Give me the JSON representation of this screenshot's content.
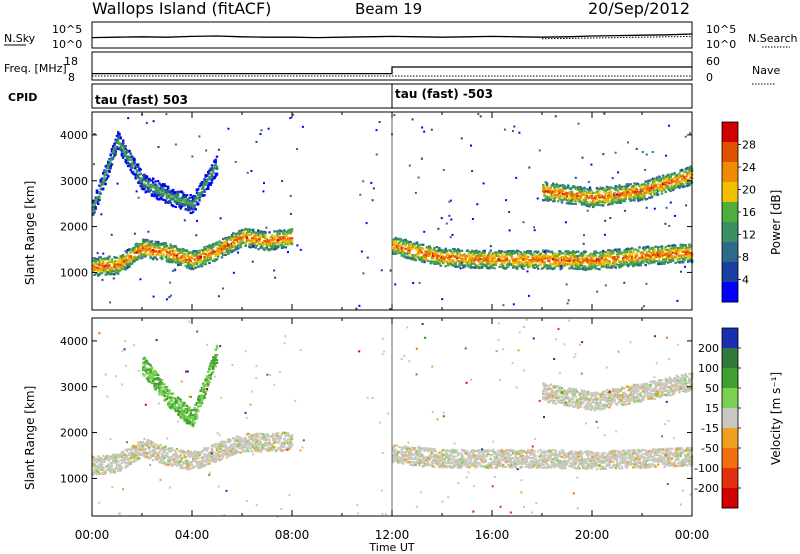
{
  "header": {
    "station": "Wallops Island (fitACF)",
    "beam": "Beam 19",
    "date": "20/Sep/2012"
  },
  "chart_data": [
    {
      "type": "line",
      "panel": "noise",
      "left_label": "N.Sky",
      "right_label": "N.Search",
      "left_ticks": [
        "10^5",
        "10^0"
      ],
      "right_ticks": [
        "10^5",
        "10^0"
      ],
      "series": [
        {
          "name": "N.Sky",
          "x": [
            0,
            1,
            2,
            3,
            4,
            5,
            6,
            7,
            8,
            9,
            10,
            11,
            12,
            13,
            14,
            15,
            16,
            17,
            18,
            19,
            20,
            21,
            22,
            23,
            24
          ],
          "values": [
            2.1,
            2.2,
            2.3,
            2.2,
            2.4,
            2.5,
            2.3,
            2.2,
            2.2,
            2.1,
            2.2,
            2.3,
            2.4,
            2.3,
            2.2,
            2.3,
            2.4,
            2.3,
            2.2,
            2.3,
            2.5,
            2.6,
            2.7,
            2.8,
            3.0
          ]
        },
        {
          "name": "N.Search",
          "x": [
            18,
            19,
            20,
            21,
            22,
            23,
            24
          ],
          "values": [
            2.0,
            2.1,
            2.2,
            2.3,
            2.4,
            2.5,
            2.6
          ]
        }
      ]
    },
    {
      "type": "line",
      "panel": "frequency",
      "left_label": "Freq. [MHz]",
      "right_label": "Nave",
      "left_ticks": [
        "18",
        "8"
      ],
      "right_ticks": [
        "60",
        "0"
      ],
      "series": [
        {
          "name": "Freq.",
          "x": [
            0,
            12,
            12,
            24
          ],
          "values": [
            10,
            10,
            13,
            13
          ]
        },
        {
          "name": "Nave",
          "x": [
            0,
            24
          ],
          "values": [
            1,
            1
          ]
        }
      ]
    },
    {
      "type": "table",
      "panel": "cpid",
      "label": "CPID",
      "segments": [
        {
          "start": 0,
          "end": 12,
          "text": "tau (fast) 503"
        },
        {
          "start": 12,
          "end": 24,
          "text": "tau (fast) -503"
        }
      ]
    },
    {
      "type": "heatmap",
      "panel": "power",
      "ylabel": "Slant Range [km]",
      "yticks": [
        1000,
        2000,
        3000,
        4000
      ],
      "ylim": [
        180,
        4500
      ],
      "xlim": [
        0,
        24
      ],
      "colorbar_label": "Power [dB]",
      "colorbar_ticks": [
        4,
        8,
        12,
        16,
        20,
        24,
        28
      ],
      "colors": [
        "#0000ff",
        "#1a3da0",
        "#2d6a8a",
        "#3a9060",
        "#4cae3c",
        "#f0c000",
        "#f08a00",
        "#e05000",
        "#d00000"
      ],
      "bands": [
        {
          "name": "echo-1000",
          "points": [
            [
              0,
              1150
            ],
            [
              1,
              1180
            ],
            [
              2,
              1550
            ],
            [
              3,
              1450
            ],
            [
              4,
              1280
            ],
            [
              5,
              1500
            ],
            [
              6,
              1800
            ],
            [
              7,
              1700
            ],
            [
              8,
              1800
            ]
          ],
          "level": 20
        },
        {
          "name": "echo-1500",
          "points": [
            [
              12,
              1600
            ],
            [
              14,
              1350
            ],
            [
              16,
              1300
            ],
            [
              18,
              1300
            ],
            [
              20,
              1280
            ],
            [
              22,
              1380
            ],
            [
              24,
              1450
            ]
          ],
          "level": 20
        },
        {
          "name": "echo-3000",
          "points": [
            [
              18,
              2800
            ],
            [
              20,
              2650
            ],
            [
              22,
              2800
            ],
            [
              24,
              3150
            ]
          ],
          "level": 16
        },
        {
          "name": "echo-2400",
          "points": [
            [
              0,
              2400
            ],
            [
              1,
              3900
            ],
            [
              2,
              3000
            ],
            [
              3,
              2700
            ],
            [
              4,
              2500
            ],
            [
              5,
              3400
            ]
          ],
          "level": 12
        }
      ]
    },
    {
      "type": "heatmap",
      "panel": "velocity",
      "ylabel": "Slant Range [km]",
      "yticks": [
        1000,
        2000,
        3000,
        4000
      ],
      "ylim": [
        180,
        4500
      ],
      "xlim": [
        0,
        24
      ],
      "xticks": [
        "00:00",
        "04:00",
        "08:00",
        "12:00",
        "16:00",
        "20:00",
        "00:00"
      ],
      "xlabel": "Time UT",
      "colorbar_label": "Velocity [m s⁻¹]",
      "colorbar_ticks": [
        "200",
        "100",
        "50",
        "15",
        "-15",
        "-50",
        "-100",
        "-200"
      ],
      "colors": [
        "#1a2fb0",
        "#2f7a3a",
        "#3fa030",
        "#7ad050",
        "#c8c8c0",
        "#f0a020",
        "#f07010",
        "#e03010",
        "#d00000"
      ],
      "bands": [
        {
          "name": "echo-1000",
          "points": [
            [
              0,
              1300
            ],
            [
              1,
              1350
            ],
            [
              2,
              1700
            ],
            [
              3,
              1500
            ],
            [
              4,
              1400
            ],
            [
              5,
              1600
            ],
            [
              6,
              1800
            ],
            [
              7,
              1800
            ],
            [
              8,
              1850
            ]
          ],
          "level": "-15"
        },
        {
          "name": "echo-1500",
          "points": [
            [
              12,
              1550
            ],
            [
              14,
              1450
            ],
            [
              16,
              1450
            ],
            [
              18,
              1450
            ],
            [
              20,
              1420
            ],
            [
              22,
              1450
            ],
            [
              24,
              1500
            ]
          ],
          "level": "-15"
        },
        {
          "name": "echo-3000",
          "points": [
            [
              18,
              2900
            ],
            [
              20,
              2700
            ],
            [
              22,
              2900
            ],
            [
              24,
              3150
            ]
          ],
          "level": "-15"
        },
        {
          "name": "echo-green",
          "points": [
            [
              2,
              3500
            ],
            [
              3,
              2800
            ],
            [
              4,
              2300
            ],
            [
              5,
              3800
            ]
          ],
          "level": "50"
        }
      ]
    }
  ]
}
